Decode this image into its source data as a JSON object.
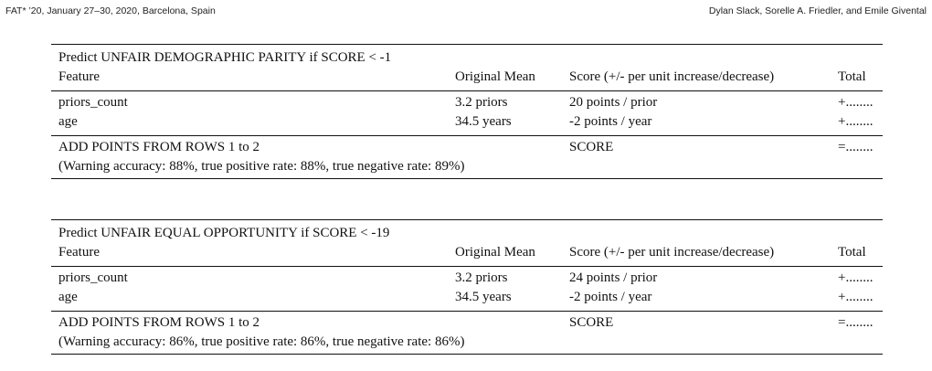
{
  "running_head": {
    "left": "FAT* ’20, January 27–30, 2020, Barcelona, Spain",
    "right": "Dylan Slack, Sorelle A. Friedler, and Emile Givental"
  },
  "tables": [
    {
      "title": "Predict UNFAIR DEMOGRAPHIC PARITY if SCORE < -1",
      "columns": {
        "feature": "Feature",
        "mean": "Original Mean",
        "score": "Score (+/- per unit increase/decrease)",
        "total": "Total"
      },
      "rows": [
        {
          "feature": "priors_count",
          "mean": "3.2 priors",
          "score": "20 points / prior",
          "total": "+........"
        },
        {
          "feature": "age",
          "mean": "34.5 years",
          "score": "-2 points / year",
          "total": "+........"
        }
      ],
      "summary": {
        "label": "ADD POINTS FROM ROWS 1 to 2",
        "score_label": "SCORE",
        "total": "=........",
        "warning": "(Warning accuracy: 88%, true positive rate: 88%, true negative rate: 89%)"
      }
    },
    {
      "title": "Predict UNFAIR EQUAL OPPORTUNITY if SCORE < -19",
      "columns": {
        "feature": "Feature",
        "mean": "Original Mean",
        "score": "Score (+/- per unit increase/decrease)",
        "total": "Total"
      },
      "rows": [
        {
          "feature": "priors_count",
          "mean": "3.2 priors",
          "score": "24 points / prior",
          "total": "+........"
        },
        {
          "feature": "age",
          "mean": "34.5 years",
          "score": "-2 points / year",
          "total": "+........"
        }
      ],
      "summary": {
        "label": "ADD POINTS FROM ROWS 1 to 2",
        "score_label": "SCORE",
        "total": "=........",
        "warning": "(Warning accuracy: 86%, true positive rate: 86%, true negative rate: 86%)"
      }
    }
  ]
}
